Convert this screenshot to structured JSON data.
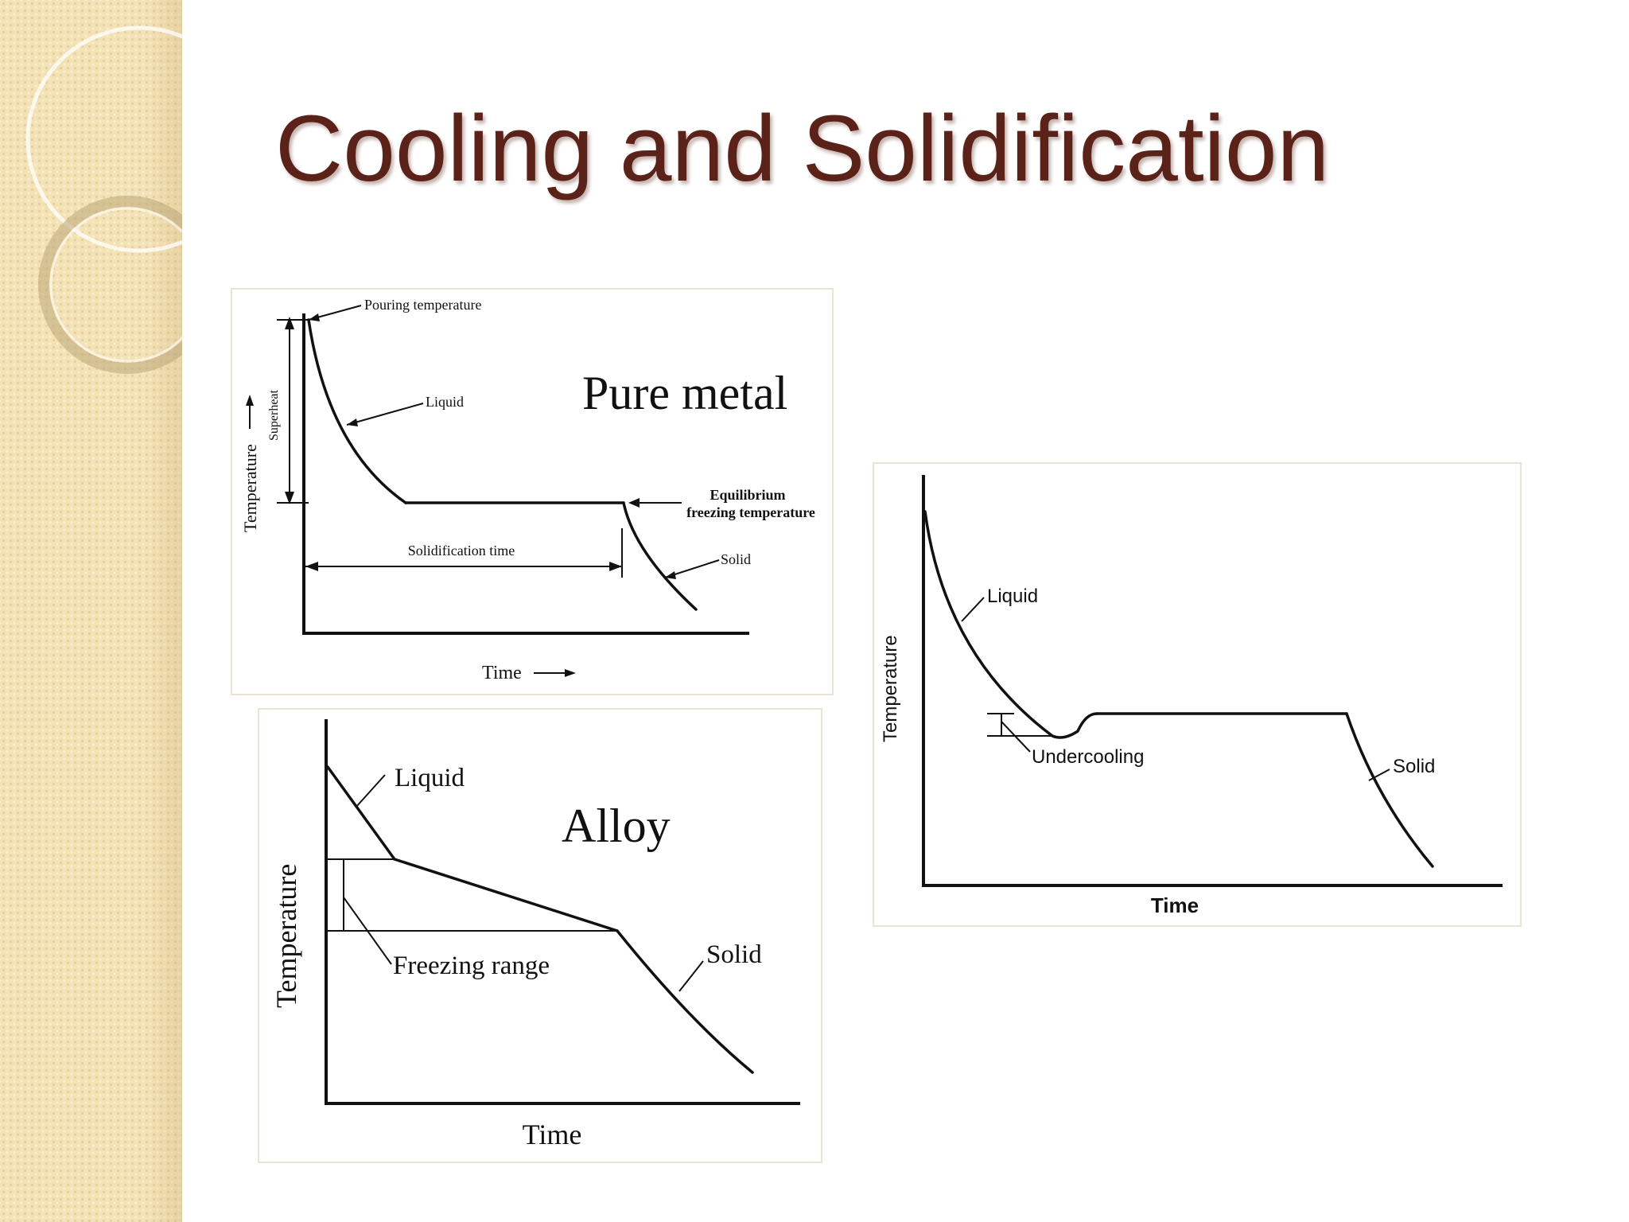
{
  "slide": {
    "title": "Cooling and Solidification"
  },
  "pure_metal_diagram": {
    "caption": "Pure metal",
    "pouring_temperature": "Pouring temperature",
    "liquid": "Liquid",
    "superheat": "Superheat",
    "y_axis": "Temperature",
    "equilibrium_line1": "Equilibrium",
    "equilibrium_line2": "freezing temperature",
    "solidification_time": "Solidification time",
    "solid": "Solid",
    "x_axis": "Time"
  },
  "alloy_diagram": {
    "caption": "Alloy",
    "liquid": "Liquid",
    "freezing_range": "Freezing range",
    "solid": "Solid",
    "y_axis": "Temperature",
    "x_axis": "Time"
  },
  "undercooling_diagram": {
    "liquid": "Liquid",
    "undercooling": "Undercooling",
    "solid": "Solid",
    "y_axis": "Temperature",
    "x_axis": "Time"
  }
}
